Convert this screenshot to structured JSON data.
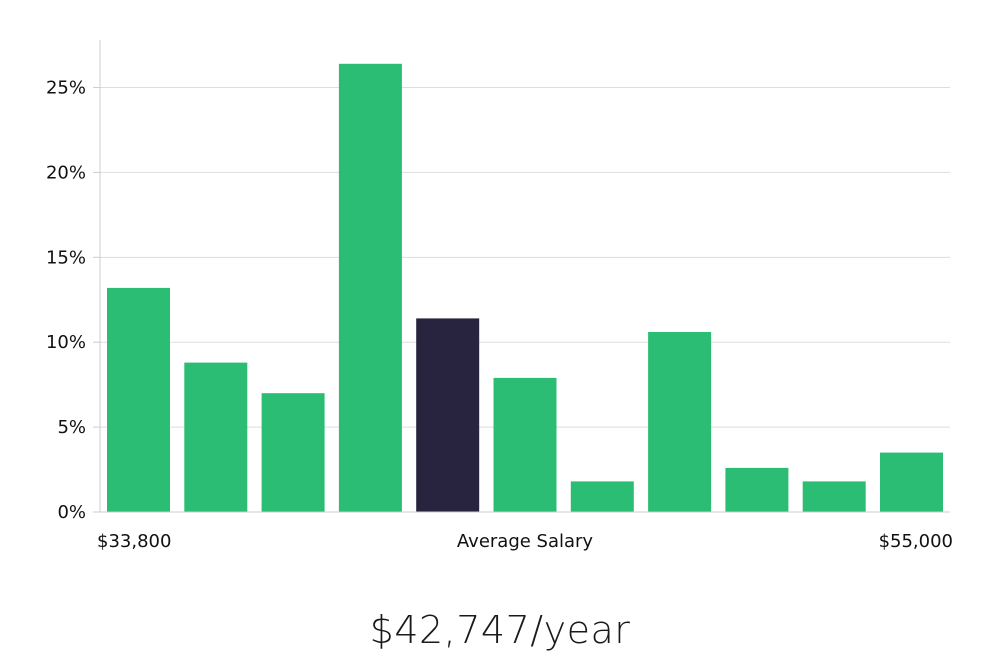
{
  "chart_data": {
    "type": "bar",
    "ylabel": "",
    "xlabel": "Average Salary",
    "x_min_label": "$33,800",
    "x_max_label": "$55,000",
    "ylim": [
      0,
      27.8
    ],
    "y_ticks": [
      0,
      5,
      10,
      15,
      20,
      25
    ],
    "y_tick_labels": [
      "0%",
      "5%",
      "10%",
      "15%",
      "20%",
      "25%"
    ],
    "values": [
      13.2,
      8.8,
      7.0,
      26.4,
      11.4,
      7.9,
      1.8,
      10.6,
      2.6,
      1.8,
      3.5
    ],
    "highlight_index": 4,
    "grid": true
  },
  "colors": {
    "bar": "#2bbd74",
    "highlight": "#28243f",
    "grid": "#dddddd",
    "axis": "#cccccc"
  },
  "salary": {
    "text": "$42,747/year"
  }
}
